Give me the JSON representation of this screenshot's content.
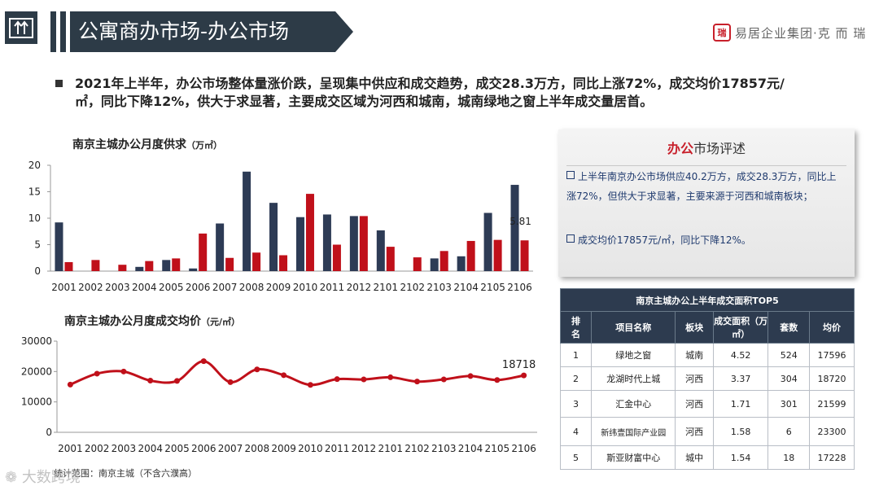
{
  "header": {
    "title": "公寓商办市场-办公市场",
    "brand": "易居企业集团·克 而 瑞",
    "brand_seal": "克而瑞"
  },
  "summary": "2021年上半年，办公市场整体量涨价跌，呈现集中供应和成交趋势，成交28.3万方，同比上涨72%，成交均价17857元/㎡，同比下降12%，供大于求显著，主要成交区域为河西和城南，城南绿地之窗上半年成交量居首。",
  "charts": {
    "supply": {
      "title": "南京主城办公月度供求",
      "unit": "（万㎡）"
    },
    "price": {
      "title": "南京主城办公月度成交均价",
      "unit": "（元/㎡）"
    }
  },
  "chart_data": [
    {
      "type": "bar",
      "categories": [
        "2001",
        "2002",
        "2003",
        "2004",
        "2005",
        "2006",
        "2007",
        "2008",
        "2009",
        "2010",
        "2011",
        "2012",
        "2101",
        "2102",
        "2103",
        "2104",
        "2105",
        "2106"
      ],
      "series": [
        {
          "color": "#2d3b55",
          "values": [
            9.2,
            0,
            0,
            0.8,
            2.1,
            0.5,
            9.0,
            18.8,
            12.9,
            10.2,
            10.7,
            10.4,
            7.7,
            0,
            2.4,
            2.8,
            11.0,
            16.3
          ]
        },
        {
          "color": "#c0101a",
          "values": [
            1.7,
            2.1,
            1.2,
            1.9,
            2.4,
            7.1,
            2.5,
            3.5,
            3.0,
            14.6,
            5.0,
            10.4,
            4.6,
            2.6,
            3.8,
            5.7,
            5.9,
            5.81
          ]
        }
      ],
      "ylim": [
        0,
        20
      ],
      "yticks": [
        0,
        5,
        10,
        15,
        20
      ],
      "data_label": "5.81"
    },
    {
      "type": "line",
      "categories": [
        "2001",
        "2002",
        "2003",
        "2004",
        "2005",
        "2006",
        "2007",
        "2008",
        "2009",
        "2010",
        "2011",
        "2012",
        "2101",
        "2102",
        "2103",
        "2104",
        "2105",
        "2106"
      ],
      "series": [
        {
          "color": "#c0101a",
          "values": [
            15700,
            19300,
            20000,
            17000,
            16900,
            23400,
            16500,
            20700,
            18800,
            15600,
            17500,
            17400,
            18100,
            16700,
            17400,
            18500,
            17200,
            18718
          ]
        }
      ],
      "ylim": [
        0,
        30000
      ],
      "yticks": [
        0,
        10000,
        20000,
        30000
      ],
      "data_label": "18718"
    }
  ],
  "panel": {
    "title_highlight": "办公",
    "title_rest": "市场评述",
    "items": [
      "上半年南京办公市场供应40.2万方，成交28.3万方，同比上涨72%，但供大于求显著，主要来源于河西和城南板块；",
      "成交均价17857元/㎡，同比下降12%。"
    ]
  },
  "table": {
    "caption": "南京主城办公上半年成交面积TOP5",
    "headers": [
      "排名",
      "项目名称",
      "板块",
      "成交面积（万㎡）",
      "套数",
      "均价"
    ],
    "rows": [
      [
        "1",
        "绿地之窗",
        "城南",
        "4.52",
        "524",
        "17596"
      ],
      [
        "2",
        "龙湖时代上城",
        "河西",
        "3.37",
        "304",
        "18720"
      ],
      [
        "3",
        "汇金中心",
        "河西",
        "1.71",
        "301",
        "21599"
      ],
      [
        "4",
        "新纬壹国际产业园",
        "河西",
        "1.58",
        "6",
        "23300"
      ],
      [
        "5",
        "斯亚财富中心",
        "城中",
        "1.54",
        "18",
        "17228"
      ]
    ]
  },
  "footnote": "统计范围：南京主城（不含六濮高）",
  "watermark": "大数跨境"
}
